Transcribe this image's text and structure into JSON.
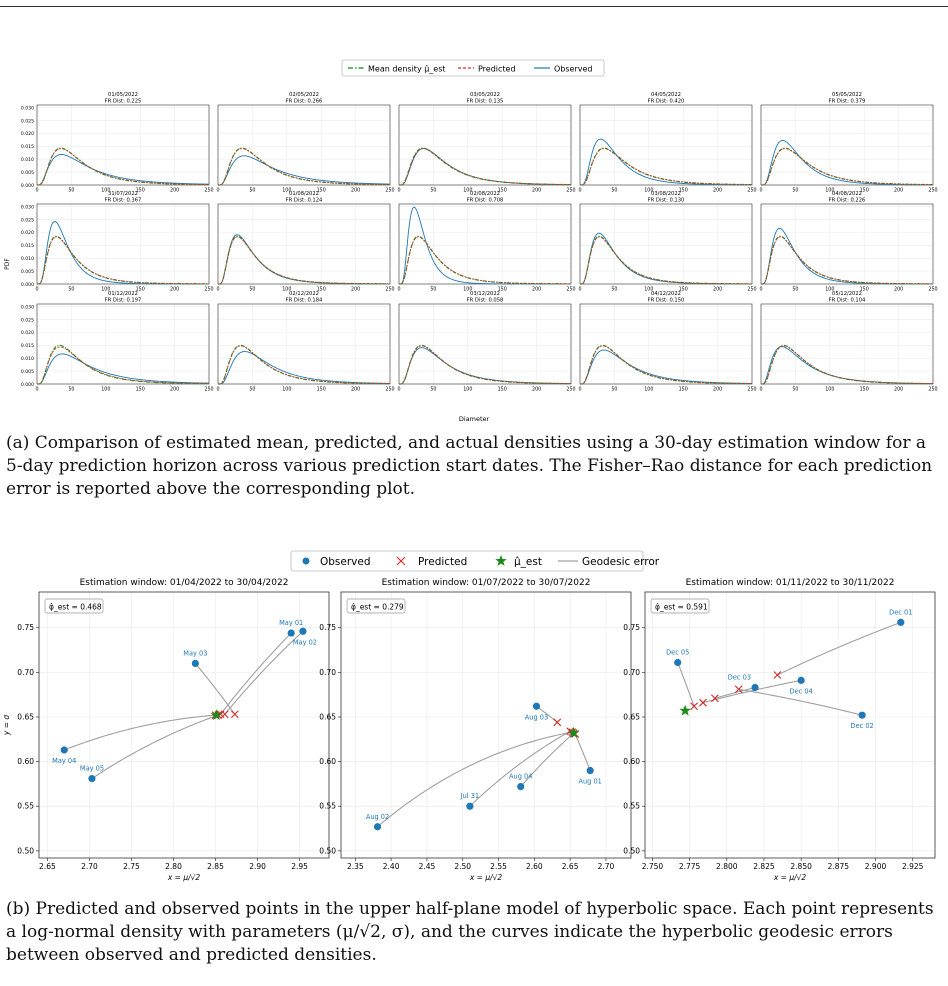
{
  "caption_a": "(a) Comparison of estimated mean, predicted, and actual densities using a 30-day estimation window for a 5-day prediction horizon across various prediction start dates. The Fisher–Rao distance for each prediction error is reported above the corresponding plot.",
  "caption_b": "(b) Predicted and observed points in the upper half-plane model of hyperbolic space. Each point represents a log-normal density with parameters (μ/√2, σ), and the curves indicate the hyperbolic geodesic errors between observed and predicted densities.",
  "colors": {
    "mean": "#2ca02c",
    "predicted": "#d62728",
    "observed": "#1f77b4",
    "geodesic": "#a0a0a0",
    "star": "#1a8a1a"
  },
  "chart_data": [
    {
      "type": "line",
      "legend": [
        "Mean density μ̂_est",
        "Predicted",
        "Observed"
      ],
      "legend_position": "top-center",
      "xlabel": "Diameter",
      "ylabel": "PDF",
      "xlim": [
        0,
        250
      ],
      "ylim": [
        0,
        0.031
      ],
      "xticks": [
        0,
        50,
        100,
        150,
        200,
        250
      ],
      "yticks": [
        "0.000",
        "0.005",
        "0.010",
        "0.015",
        "0.020",
        "0.025",
        "0.030"
      ],
      "grid": true,
      "panels": [
        {
          "date": "01/05/2022",
          "fr_dist": "FR Dist: 0.225",
          "mean": {
            "mu": 3.97,
            "sigma": 0.652
          },
          "predicted": {
            "mu": 3.98,
            "sigma": 0.655
          },
          "observed": {
            "mu": 4.1,
            "sigma": 0.73
          }
        },
        {
          "date": "02/05/2022",
          "fr_dist": "FR Dist: 0.266",
          "mean": {
            "mu": 3.97,
            "sigma": 0.652
          },
          "predicted": {
            "mu": 3.98,
            "sigma": 0.655
          },
          "observed": {
            "mu": 4.15,
            "sigma": 0.72
          }
        },
        {
          "date": "03/05/2022",
          "fr_dist": "FR Dist: 0.135",
          "mean": {
            "mu": 3.97,
            "sigma": 0.652
          },
          "predicted": {
            "mu": 3.98,
            "sigma": 0.655
          },
          "observed": {
            "mu": 3.99,
            "sigma": 0.64
          }
        },
        {
          "date": "04/05/2022",
          "fr_dist": "FR Dist: 0.420",
          "mean": {
            "mu": 3.97,
            "sigma": 0.652
          },
          "predicted": {
            "mu": 3.98,
            "sigma": 0.655
          },
          "observed": {
            "mu": 3.78,
            "sigma": 0.62
          }
        },
        {
          "date": "05/05/2022",
          "fr_dist": "FR Dist: 0.379",
          "mean": {
            "mu": 3.97,
            "sigma": 0.652
          },
          "predicted": {
            "mu": 3.98,
            "sigma": 0.655
          },
          "observed": {
            "mu": 3.82,
            "sigma": 0.61
          }
        },
        {
          "date": "31/07/2022",
          "fr_dist": "FR Dist: 0.367",
          "mean": {
            "mu": 3.73,
            "sigma": 0.632
          },
          "predicted": {
            "mu": 3.74,
            "sigma": 0.634
          },
          "observed": {
            "mu": 3.55,
            "sigma": 0.55
          }
        },
        {
          "date": "01/08/2022",
          "fr_dist": "FR Dist: 0.124",
          "mean": {
            "mu": 3.73,
            "sigma": 0.632
          },
          "predicted": {
            "mu": 3.74,
            "sigma": 0.634
          },
          "observed": {
            "mu": 3.71,
            "sigma": 0.62
          }
        },
        {
          "date": "02/08/2022",
          "fr_dist": "FR Dist: 0.708",
          "mean": {
            "mu": 3.73,
            "sigma": 0.632
          },
          "predicted": {
            "mu": 3.74,
            "sigma": 0.634
          },
          "observed": {
            "mu": 3.37,
            "sigma": 0.53
          }
        },
        {
          "date": "03/08/2022",
          "fr_dist": "FR Dist: 0.130",
          "mean": {
            "mu": 3.73,
            "sigma": 0.632
          },
          "predicted": {
            "mu": 3.74,
            "sigma": 0.634
          },
          "observed": {
            "mu": 3.69,
            "sigma": 0.61
          }
        },
        {
          "date": "04/08/2022",
          "fr_dist": "FR Dist: 0.226",
          "mean": {
            "mu": 3.73,
            "sigma": 0.632
          },
          "predicted": {
            "mu": 3.74,
            "sigma": 0.634
          },
          "observed": {
            "mu": 3.63,
            "sigma": 0.58
          }
        },
        {
          "date": "01/12/2022",
          "fr_dist": "FR Dist: 0.197",
          "mean": {
            "mu": 3.92,
            "sigma": 0.656
          },
          "predicted": {
            "mu": 3.95,
            "sigma": 0.67
          },
          "observed": {
            "mu": 4.12,
            "sigma": 0.72
          }
        },
        {
          "date": "02/12/2022",
          "fr_dist": "FR Dist: 0.184",
          "mean": {
            "mu": 3.92,
            "sigma": 0.656
          },
          "predicted": {
            "mu": 3.93,
            "sigma": 0.66
          },
          "observed": {
            "mu": 4.09,
            "sigma": 0.66
          }
        },
        {
          "date": "03/12/2022",
          "fr_dist": "FR Dist: 0.058",
          "mean": {
            "mu": 3.92,
            "sigma": 0.656
          },
          "predicted": {
            "mu": 3.93,
            "sigma": 0.66
          },
          "observed": {
            "mu": 3.96,
            "sigma": 0.68
          }
        },
        {
          "date": "04/12/2022",
          "fr_dist": "FR Dist: 0.150",
          "mean": {
            "mu": 3.92,
            "sigma": 0.656
          },
          "predicted": {
            "mu": 3.93,
            "sigma": 0.66
          },
          "observed": {
            "mu": 4.02,
            "sigma": 0.69
          }
        },
        {
          "date": "05/12/2022",
          "fr_dist": "FR Dist: 0.104",
          "mean": {
            "mu": 3.92,
            "sigma": 0.656
          },
          "predicted": {
            "mu": 3.93,
            "sigma": 0.66
          },
          "observed": {
            "mu": 3.91,
            "sigma": 0.71
          }
        }
      ]
    },
    {
      "type": "scatter",
      "legend": [
        "Observed",
        "Predicted",
        "μ̂_est",
        "Geodesic error"
      ],
      "legend_position": "top-center",
      "xlabel": "x = μ/√2",
      "ylabel": "y = σ",
      "grid": true,
      "panels": [
        {
          "title": "Estimation window: 01/04/2022 to 30/04/2022",
          "phi_label": "φ̂_est = 0.468",
          "xlim": [
            2.64,
            2.985
          ],
          "ylim": [
            0.492,
            0.79
          ],
          "xticks": [
            "2.65",
            "2.70",
            "2.75",
            "2.80",
            "2.85",
            "2.90",
            "2.95"
          ],
          "yticks": [
            "0.50",
            "0.55",
            "0.60",
            "0.65",
            "0.70",
            "0.75"
          ],
          "star": {
            "x": 2.851,
            "y": 0.652
          },
          "observed": [
            {
              "label": "May 01",
              "x": 2.94,
              "y": 0.744,
              "lp": "top"
            },
            {
              "label": "May 02",
              "x": 2.954,
              "y": 0.746,
              "lp": "below-right"
            },
            {
              "label": "May 03",
              "x": 2.826,
              "y": 0.71,
              "lp": "top"
            },
            {
              "label": "May 04",
              "x": 2.67,
              "y": 0.613,
              "lp": "below"
            },
            {
              "label": "May 05",
              "x": 2.703,
              "y": 0.581,
              "lp": "top"
            }
          ],
          "predicted": [
            {
              "x": 2.856,
              "y": 0.653
            },
            {
              "x": 2.861,
              "y": 0.653
            },
            {
              "x": 2.873,
              "y": 0.653
            },
            {
              "x": 2.85,
              "y": 0.652
            },
            {
              "x": 2.853,
              "y": 0.652
            }
          ]
        },
        {
          "title": "Estimation window: 01/07/2022 to 30/07/2022",
          "phi_label": "φ̂_est = 0.279",
          "xlim": [
            2.33,
            2.735
          ],
          "ylim": [
            0.492,
            0.79
          ],
          "xticks": [
            "2.35",
            "2.40",
            "2.45",
            "2.50",
            "2.55",
            "2.60",
            "2.65",
            "2.70"
          ],
          "yticks": [
            "0.50",
            "0.55",
            "0.60",
            "0.65",
            "0.70",
            "0.75"
          ],
          "star": {
            "x": 2.655,
            "y": 0.632
          },
          "observed": [
            {
              "label": "Jul 31",
              "x": 2.51,
              "y": 0.55,
              "lp": "top"
            },
            {
              "label": "Aug 01",
              "x": 2.678,
              "y": 0.59,
              "lp": "below"
            },
            {
              "label": "Aug 02",
              "x": 2.381,
              "y": 0.527,
              "lp": "top"
            },
            {
              "label": "Aug 03",
              "x": 2.603,
              "y": 0.662,
              "lp": "below"
            },
            {
              "label": "Aug 04",
              "x": 2.581,
              "y": 0.572,
              "lp": "top"
            }
          ],
          "predicted": [
            {
              "x": 2.65,
              "y": 0.634
            },
            {
              "x": 2.657,
              "y": 0.631
            },
            {
              "x": 2.653,
              "y": 0.633
            },
            {
              "x": 2.632,
              "y": 0.644
            },
            {
              "x": 2.655,
              "y": 0.632
            }
          ]
        },
        {
          "title": "Estimation window: 01/11/2022 to 30/11/2022",
          "phi_label": "φ̂_est = 0.591",
          "xlim": [
            2.745,
            2.94
          ],
          "ylim": [
            0.492,
            0.79
          ],
          "xticks": [
            "2.750",
            "2.775",
            "2.800",
            "2.825",
            "2.850",
            "2.875",
            "2.900",
            "2.925"
          ],
          "yticks": [
            "0.50",
            "0.55",
            "0.60",
            "0.65",
            "0.70",
            "0.75"
          ],
          "star": {
            "x": 2.772,
            "y": 0.657
          },
          "observed": [
            {
              "label": "Dec 01",
              "x": 2.917,
              "y": 0.756,
              "lp": "top"
            },
            {
              "label": "Dec 02",
              "x": 2.891,
              "y": 0.652,
              "lp": "below"
            },
            {
              "label": "Dec 03",
              "x": 2.819,
              "y": 0.683,
              "lp": "top-left"
            },
            {
              "label": "Dec 04",
              "x": 2.85,
              "y": 0.691,
              "lp": "below"
            },
            {
              "label": "Dec 05",
              "x": 2.767,
              "y": 0.711,
              "lp": "top"
            }
          ],
          "predicted": [
            {
              "x": 2.834,
              "y": 0.697
            },
            {
              "x": 2.808,
              "y": 0.681
            },
            {
              "x": 2.792,
              "y": 0.671
            },
            {
              "x": 2.784,
              "y": 0.666
            },
            {
              "x": 2.778,
              "y": 0.662
            }
          ]
        }
      ]
    }
  ]
}
